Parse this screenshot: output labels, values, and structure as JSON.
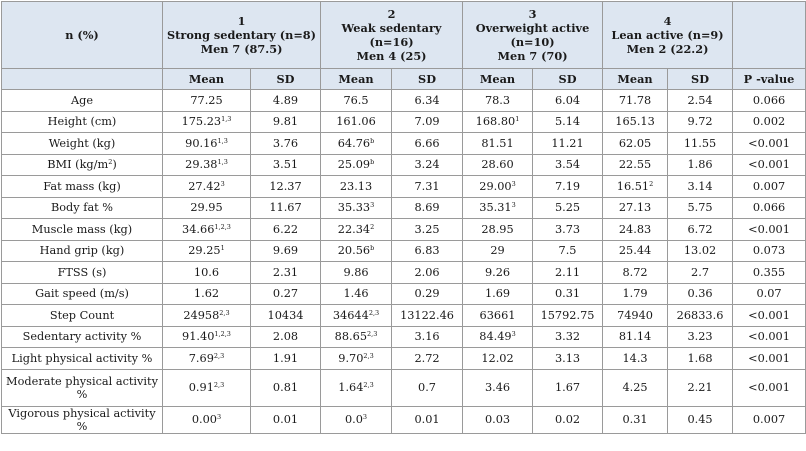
{
  "header": {
    "first_col": "n (%)",
    "groups": [
      {
        "number": "1",
        "name": "Strong sedentary (n=8)",
        "name2": "",
        "men": "Men 7 (87.5)"
      },
      {
        "number": "2",
        "name": "Weak sedentary",
        "name2": "(n=16)",
        "men": "Men 4 (25)"
      },
      {
        "number": "3",
        "name": "Overweight active",
        "name2": "(n=10)",
        "men": "Men 7 (70)"
      },
      {
        "number": "4",
        "name": "Lean active (n=9)",
        "name2": "",
        "men": "Men 2 (22.2)"
      }
    ],
    "mean": "Mean",
    "sd": "SD",
    "p_value": "P -value"
  },
  "rows": [
    {
      "label": "Age",
      "m1": "77.25",
      "s1": "",
      "sd1": "4.89",
      "m2": "76.5",
      "s2": "",
      "sd2": "6.34",
      "m3": "78.3",
      "s3": "",
      "sd3": "6.04",
      "m4": "71.78",
      "s4": "",
      "sd4": "2.54",
      "p": "0.066"
    },
    {
      "label": "Height (cm)",
      "m1": "175.23",
      "s1": "1,3",
      "sd1": "9.81",
      "m2": "161.06",
      "s2": "",
      "sd2": "7.09",
      "m3": "168.80",
      "s3": "1",
      "sd3": "5.14",
      "m4": "165.13",
      "s4": "",
      "sd4": "9.72",
      "p": "0.002"
    },
    {
      "label": "Weight (kg)",
      "m1": "90.16",
      "s1": "1,3",
      "sd1": "3.76",
      "m2": "64.76",
      "s2": "b",
      "sd2": "6.66",
      "m3": "81.51",
      "s3": "",
      "sd3": "11.21",
      "m4": "62.05",
      "s4": "",
      "sd4": "11.55",
      "p": "<0.001"
    },
    {
      "label": "BMI (kg/m",
      "label_sup": "2",
      "label_tail": ")",
      "m1": "29.38",
      "s1": "1,3",
      "sd1": "3.51",
      "m2": "25.09",
      "s2": "b",
      "sd2": "3.24",
      "m3": "28.60",
      "s3": "",
      "sd3": "3.54",
      "m4": "22.55",
      "s4": "",
      "sd4": "1.86",
      "p": "<0.001"
    },
    {
      "label": "Fat mass (kg)",
      "m1": "27.42",
      "s1": "3",
      "sd1": "12.37",
      "m2": "23.13",
      "s2": "",
      "sd2": "7.31",
      "m3": "29.00",
      "s3": "3",
      "sd3": "7.19",
      "m4": "16.51",
      "s4": "2",
      "sd4": "3.14",
      "p": "0.007"
    },
    {
      "label": "Body fat %",
      "m1": "29.95",
      "s1": "",
      "sd1": "11.67",
      "m2": "35.33",
      "s2": "3",
      "sd2": "8.69",
      "m3": "35.31",
      "s3": "3",
      "sd3": "5.25",
      "m4": "27.13",
      "s4": "",
      "sd4": "5.75",
      "p": "0.066"
    },
    {
      "label": "Muscle mass (kg)",
      "m1": "34.66",
      "s1": "1,2,3",
      "sd1": "6.22",
      "m2": "22.34",
      "s2": "2",
      "sd2": "3.25",
      "m3": "28.95",
      "s3": "",
      "sd3": "3.73",
      "m4": "24.83",
      "s4": "",
      "sd4": "6.72",
      "p": "<0.001"
    },
    {
      "label": "Hand grip (kg)",
      "m1": "29.25",
      "s1": "1",
      "sd1": "9.69",
      "m2": "20.56",
      "s2": "b",
      "sd2": "6.83",
      "m3": "29",
      "s3": "",
      "sd3": "7.5",
      "m4": "25.44",
      "s4": "",
      "sd4": "13.02",
      "p": "0.073"
    },
    {
      "label": "FTSS (s)",
      "m1": "10.6",
      "s1": "",
      "sd1": "2.31",
      "m2": "9.86",
      "s2": "",
      "sd2": "2.06",
      "m3": "9.26",
      "s3": "",
      "sd3": "2.11",
      "m4": "8.72",
      "s4": "",
      "sd4": "2.7",
      "p": "0.355"
    },
    {
      "label": "Gait speed (m/s)",
      "m1": "1.62",
      "s1": "",
      "sd1": "0.27",
      "m2": "1.46",
      "s2": "",
      "sd2": "0.29",
      "m3": "1.69",
      "s3": "",
      "sd3": "0.31",
      "m4": "1.79",
      "s4": "",
      "sd4": "0.36",
      "p": "0.07"
    },
    {
      "label": "Step Count",
      "m1": "24958",
      "s1": "2,3",
      "sd1": "10434",
      "m2": "34644",
      "s2": "2,3",
      "sd2": "13122.46",
      "m3": "63661",
      "s3": "",
      "sd3": "15792.75",
      "m4": "74940",
      "s4": "",
      "sd4": "26833.6",
      "p": "<0.001"
    },
    {
      "label": "Sedentary activity %",
      "m1": "91.40",
      "s1": "1,2,3",
      "sd1": "2.08",
      "m2": "88.65",
      "s2": "2,3",
      "sd2": "3.16",
      "m3": "84.49",
      "s3": "3",
      "sd3": "3.32",
      "m4": "81.14",
      "s4": "",
      "sd4": "3.23",
      "p": "<0.001"
    },
    {
      "label": "Light physical activity %",
      "m1": "7.69",
      "s1": "2,3",
      "sd1": "1.91",
      "m2": "9.70",
      "s2": "2,3",
      "sd2": "2.72",
      "m3": "12.02",
      "s3": "",
      "sd3": "3.13",
      "m4": "14.3",
      "s4": "",
      "sd4": "1.68",
      "p": "<0.001"
    },
    {
      "label": "Moderate physical activity %",
      "m1": "0.91",
      "s1": "2,3",
      "sd1": "0.81",
      "m2": "1.64",
      "s2": "2,3",
      "sd2": "0.7",
      "m3": "3.46",
      "s3": "",
      "sd3": "1.67",
      "m4": "4.25",
      "s4": "",
      "sd4": "2.21",
      "p": "<0.001",
      "tall": true
    },
    {
      "label": "Vigorous physical activity %",
      "m1": "0.00",
      "s1": "3",
      "sd1": "0.01",
      "m2": "0.0",
      "s2": "3",
      "sd2": "0.01",
      "m3": "0.03",
      "s3": "",
      "sd3": "0.02",
      "m4": "0.31",
      "s4": "",
      "sd4": "0.45",
      "p": "0.007"
    }
  ],
  "colors": {
    "header_bg": "#dde6f1",
    "border": "#9a9a9a",
    "text": "#1a1a1a"
  }
}
